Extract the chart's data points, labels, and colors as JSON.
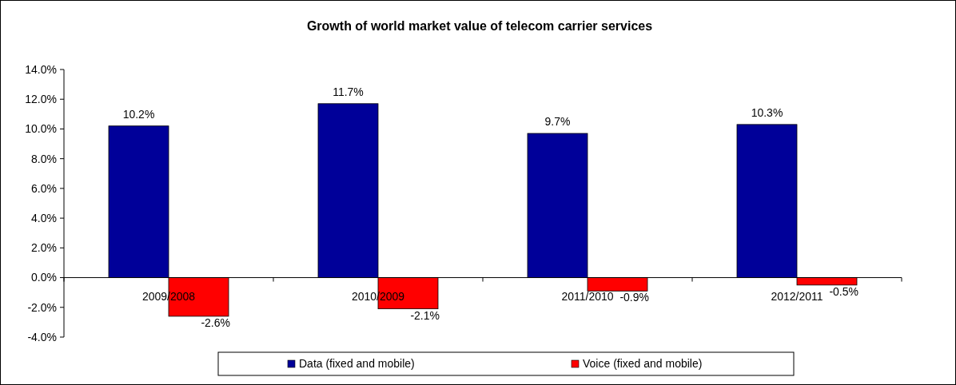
{
  "chart_data": {
    "type": "bar",
    "title": "Growth of world market value of telecom carrier services",
    "categories": [
      "2009/2008",
      "2010/2009",
      "2011/2010",
      "2012/2011"
    ],
    "series": [
      {
        "name": "Data (fixed and mobile)",
        "color": "#000099",
        "values": [
          10.2,
          11.7,
          9.7,
          10.3
        ],
        "value_labels": [
          "10.2%",
          "11.7%",
          "9.7%",
          "10.3%"
        ]
      },
      {
        "name": "Voice (fixed and mobile)",
        "color": "#ff0000",
        "values": [
          -2.6,
          -2.1,
          -0.9,
          -0.5
        ],
        "value_labels": [
          "-2.6%",
          "-2.1%",
          "-0.9%",
          "-0.5%"
        ]
      }
    ],
    "ylim": [
      -4,
      14
    ],
    "yticks": [
      {
        "value": -4,
        "label": "-4.0%"
      },
      {
        "value": -2,
        "label": "-2.0%"
      },
      {
        "value": 0,
        "label": "0.0%"
      },
      {
        "value": 2,
        "label": "2.0%"
      },
      {
        "value": 4,
        "label": "4.0%"
      },
      {
        "value": 6,
        "label": "6.0%"
      },
      {
        "value": 8,
        "label": "8.0%"
      },
      {
        "value": 10,
        "label": "10.0%"
      },
      {
        "value": 12,
        "label": "12.0%"
      },
      {
        "value": 14,
        "label": "14.0%"
      }
    ],
    "grid": false,
    "legend": "bottom"
  }
}
